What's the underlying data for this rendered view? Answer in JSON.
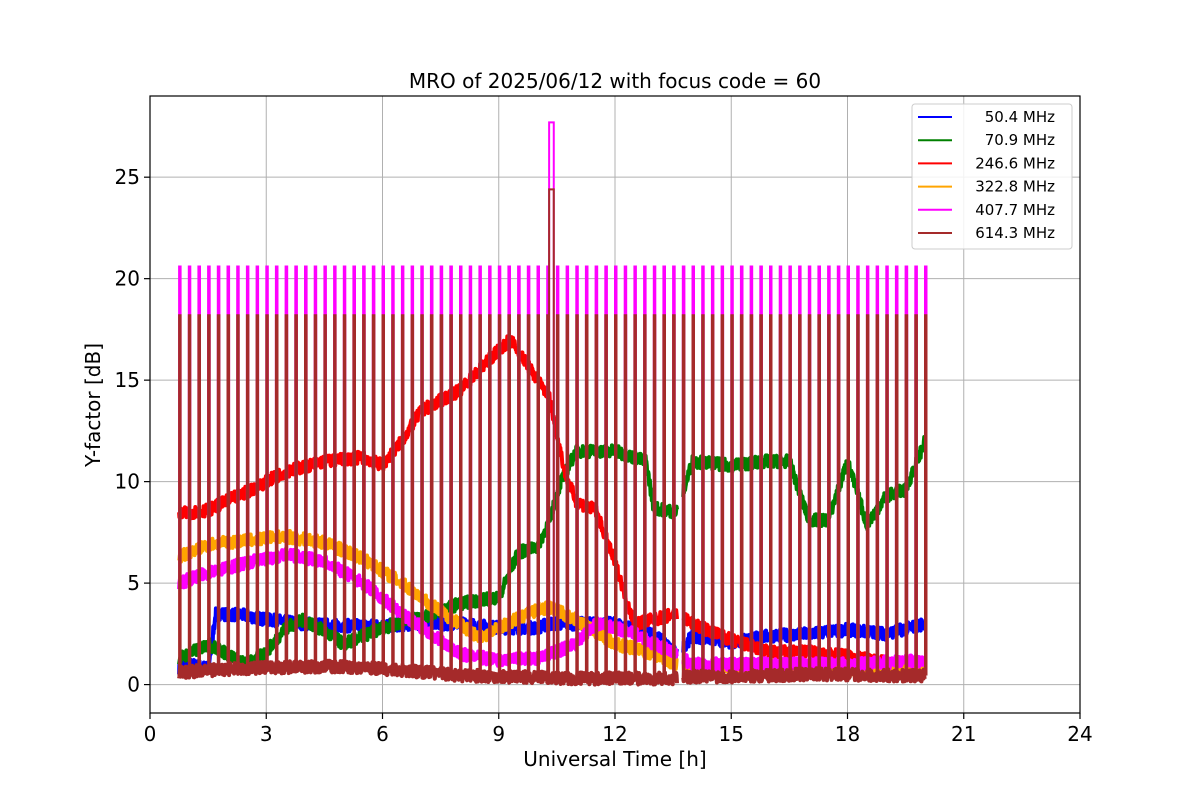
{
  "chart_data": {
    "type": "line",
    "title": "MRO of 2025/06/12 with focus code = 60",
    "xlabel": "Universal Time [h]",
    "ylabel": "Y-factor [dB]",
    "xlim": [
      0,
      24
    ],
    "ylim": [
      -1.4,
      29
    ],
    "xticks": [
      0,
      3,
      6,
      9,
      12,
      15,
      18,
      21,
      24
    ],
    "yticks": [
      0,
      5,
      10,
      15,
      20,
      25
    ],
    "grid": true,
    "legend_position": "top-right",
    "scan_period_hours": 0.25,
    "scan_start_hour": 0.75,
    "scan_end_hour": 20,
    "data_gap_hours": [
      13.6,
      13.75
    ],
    "series": [
      {
        "name": "50.4 MHz",
        "color": "#0000ff",
        "x": [
          0.75,
          1.0,
          1.5,
          1.7,
          2.5,
          3.0,
          4.0,
          5.0,
          6.0,
          7.0,
          8.0,
          9.0,
          10.0,
          10.3,
          11.0,
          12.0,
          13.0,
          13.6,
          14.0,
          15.0,
          16.0,
          17.0,
          18.0,
          19.0,
          20.0
        ],
        "y": [
          0.8,
          1.0,
          0.8,
          3.5,
          3.4,
          3.2,
          3.0,
          2.9,
          2.9,
          3.0,
          3.0,
          2.8,
          2.8,
          3.0,
          3.0,
          3.0,
          2.5,
          1.5,
          2.4,
          2.1,
          2.4,
          2.5,
          2.7,
          2.5,
          3.0
        ]
      },
      {
        "name": "70.9 MHz",
        "color": "#008000",
        "x": [
          0.75,
          1.0,
          1.5,
          2.0,
          2.5,
          3.0,
          3.5,
          4.0,
          5.0,
          6.0,
          7.0,
          8.0,
          9.0,
          9.5,
          10.0,
          10.3,
          10.6,
          11.0,
          12.0,
          12.8,
          13.0,
          13.6,
          14.0,
          15.0,
          15.9,
          16.5,
          17.0,
          17.5,
          18.0,
          18.5,
          19.0,
          19.5,
          20.0
        ],
        "y": [
          1.3,
          1.5,
          2.0,
          1.5,
          1.0,
          1.6,
          2.8,
          3.2,
          2.0,
          2.8,
          3.3,
          4.0,
          4.3,
          6.5,
          6.8,
          8.0,
          10.0,
          11.5,
          11.5,
          11.0,
          8.7,
          8.5,
          11.0,
          10.8,
          11.0,
          11.0,
          8.1,
          8.1,
          11.0,
          7.9,
          9.3,
          9.6,
          12.0
        ]
      },
      {
        "name": "246.6 MHz",
        "color": "#ff0000",
        "x": [
          0.75,
          1.5,
          2.5,
          3.5,
          4.5,
          5.5,
          6.0,
          6.5,
          7.0,
          8.0,
          9.0,
          9.3,
          10.0,
          10.3,
          10.7,
          11.0,
          11.5,
          12.0,
          12.5,
          13.0,
          13.6,
          14.0,
          15.0,
          16.0,
          17.0,
          18.0,
          19.0,
          19.5,
          20.0
        ],
        "y": [
          8.4,
          8.6,
          9.5,
          10.5,
          11.0,
          11.2,
          10.8,
          12.0,
          13.5,
          14.5,
          16.5,
          17.0,
          15.0,
          14.2,
          10.5,
          9.0,
          8.6,
          6.0,
          3.0,
          3.2,
          3.5,
          3.0,
          2.2,
          1.6,
          1.6,
          1.4,
          1.1,
          0.8,
          1.0
        ]
      },
      {
        "name": "322.8 MHz",
        "color": "#ffa500",
        "x": [
          0.75,
          1.5,
          2.5,
          3.5,
          4.5,
          5.5,
          6.5,
          7.5,
          8.0,
          8.5,
          9.0,
          10.0,
          10.3,
          11.0,
          12.0,
          12.5,
          13.0,
          13.6,
          14.0,
          15.0,
          16.0,
          17.0,
          18.0,
          19.0,
          20.0
        ],
        "y": [
          6.3,
          6.9,
          7.1,
          7.3,
          7.0,
          6.2,
          5.0,
          3.6,
          3.0,
          2.3,
          2.8,
          3.7,
          3.8,
          3.2,
          2.0,
          1.8,
          1.5,
          1.0,
          0.8,
          0.9,
          0.9,
          0.8,
          0.8,
          0.7,
          0.7
        ]
      },
      {
        "name": "407.7 MHz",
        "color": "#ff00ff",
        "x": [
          0.75,
          1.5,
          2.5,
          3.5,
          4.5,
          5.5,
          6.5,
          7.5,
          8.0,
          9.0,
          10.0,
          10.3,
          11.0,
          11.5,
          12.0,
          12.5,
          13.0,
          13.6,
          14.0,
          15.0,
          16.0,
          17.0,
          18.0,
          19.0,
          20.0
        ],
        "y": [
          5.0,
          5.5,
          6.0,
          6.4,
          6.1,
          5.0,
          3.5,
          2.2,
          1.5,
          1.2,
          1.3,
          1.5,
          2.0,
          3.0,
          2.8,
          2.5,
          2.0,
          1.5,
          1.0,
          1.0,
          1.0,
          1.0,
          1.0,
          1.1,
          1.2
        ]
      },
      {
        "name": "614.3 MHz",
        "color": "#a52a2a",
        "x": [
          0.75,
          1.5,
          2.5,
          3.5,
          4.5,
          5.5,
          6.5,
          7.5,
          8.0,
          9.0,
          10.0,
          10.3,
          11.0,
          12.0,
          13.0,
          13.6,
          14.0,
          15.0,
          16.0,
          17.0,
          18.0,
          19.0,
          20.0
        ],
        "y": [
          0.6,
          0.7,
          0.8,
          0.85,
          0.9,
          0.85,
          0.7,
          0.55,
          0.45,
          0.4,
          0.35,
          0.35,
          0.3,
          0.3,
          0.3,
          0.3,
          0.4,
          0.4,
          0.45,
          0.5,
          0.5,
          0.45,
          0.45
        ]
      }
    ],
    "calibration_peaks": {
      "407.7 MHz": 20.6,
      "614.3 MHz": 18.2
    },
    "spike": {
      "x": 10.3,
      "x_end": 10.42,
      "407.7 MHz": 27.7,
      "614.3 MHz": 24.4
    }
  }
}
